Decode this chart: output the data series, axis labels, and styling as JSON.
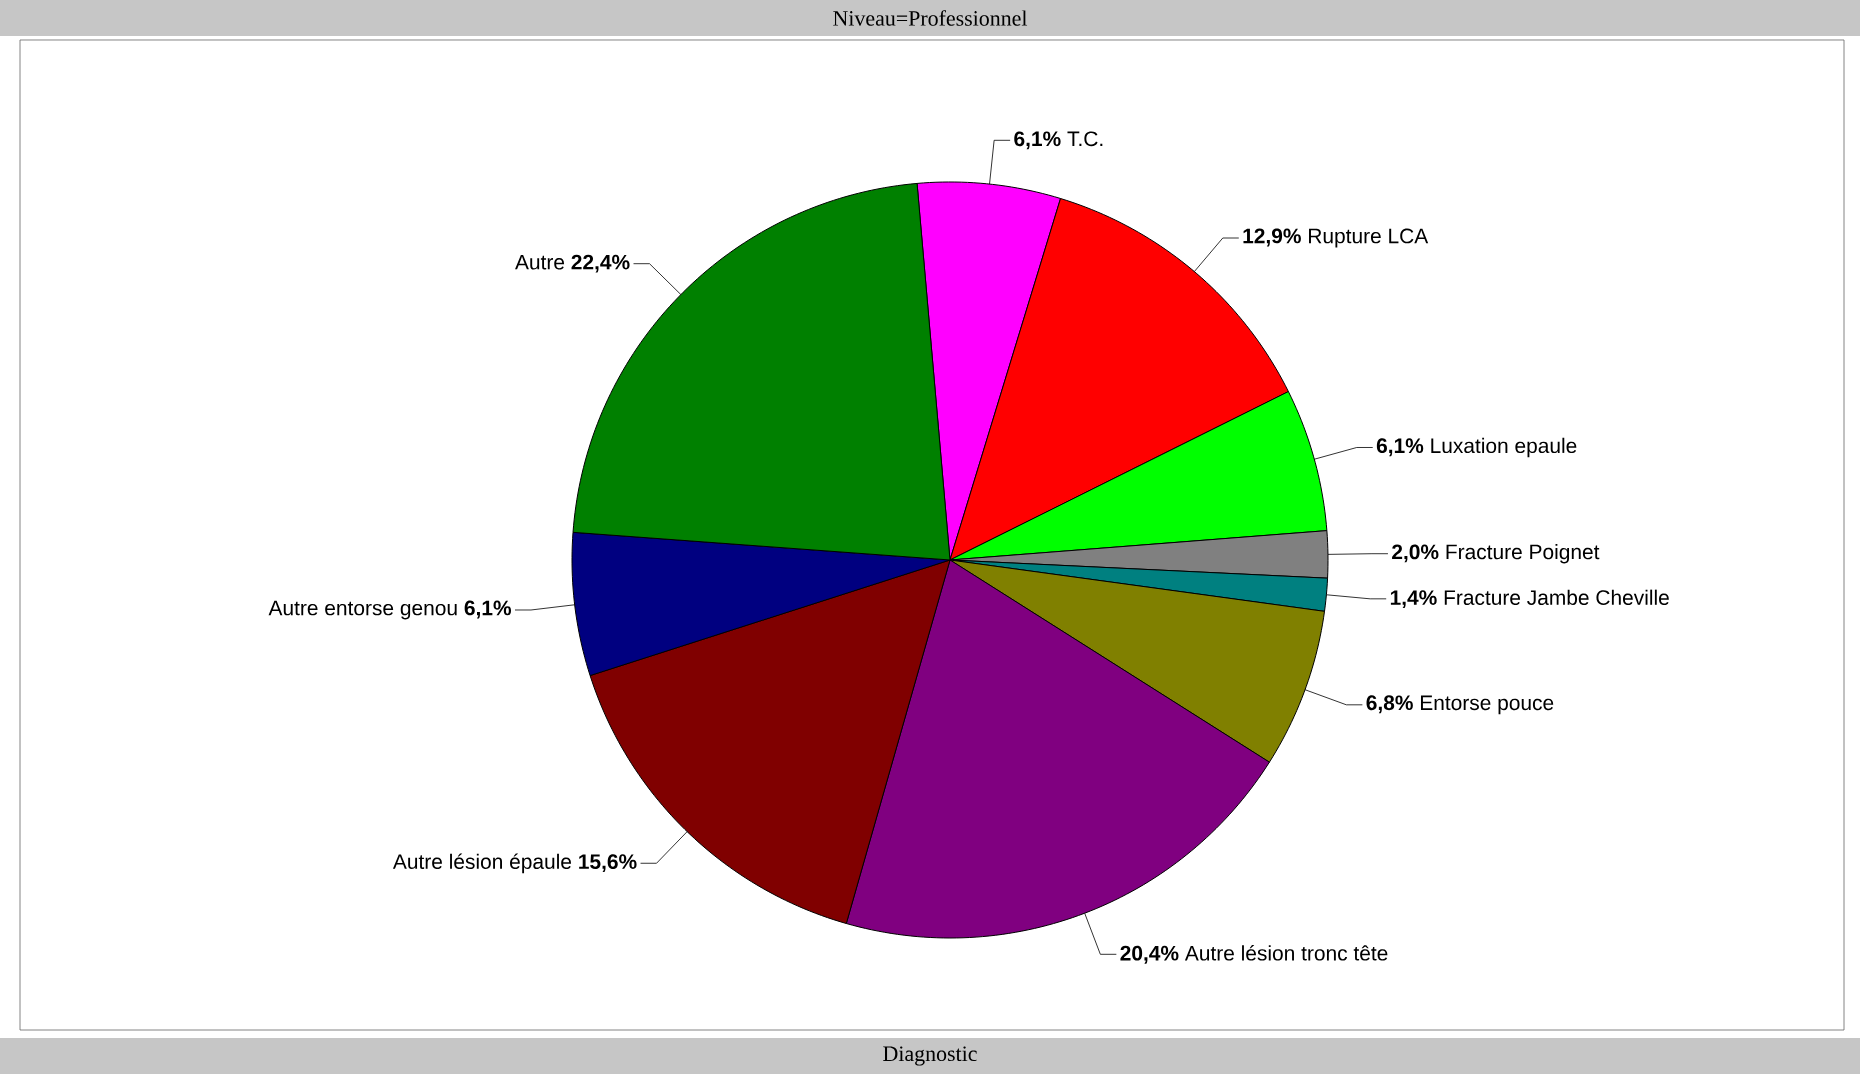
{
  "chart_data": {
    "type": "pie",
    "title": "Niveau=Professionnel",
    "xlabel": "Diagnostic",
    "categories": [
      "T.C.",
      "Rupture LCA",
      "Luxation epaule",
      "Fracture Poignet",
      "Fracture Jambe Cheville",
      "Entorse pouce",
      "Autre lésion tronc tête",
      "Autre lésion épaule",
      "Autre entorse genou",
      "Autre"
    ],
    "values": [
      6.1,
      12.9,
      6.1,
      2.0,
      1.4,
      6.8,
      20.4,
      15.6,
      6.1,
      22.4
    ],
    "value_labels": [
      "6,1%",
      "12,9%",
      "6,1%",
      "2,0%",
      "1,4%",
      "6,8%",
      "20,4%",
      "15,6%",
      "6,1%",
      "22,4%"
    ],
    "colors": [
      "#ff00ff",
      "#ff0000",
      "#00ff00",
      "#808080",
      "#008080",
      "#808000",
      "#800080",
      "#800000",
      "#000080",
      "#008000"
    ]
  }
}
